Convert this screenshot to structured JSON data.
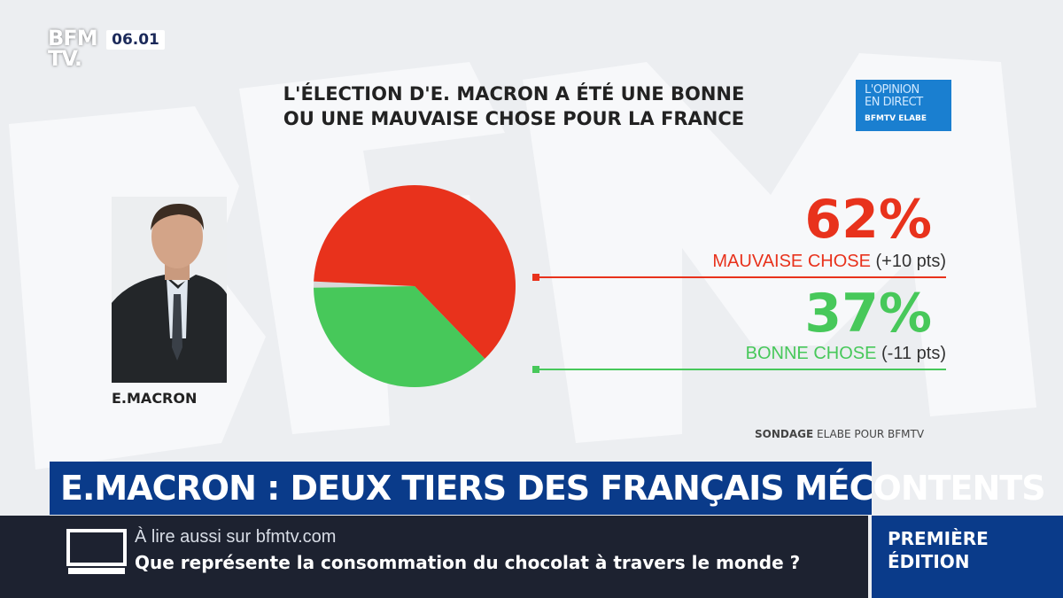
{
  "channel": {
    "logo_line1": "BFM",
    "logo_line2": "TV.",
    "clock": "06.01"
  },
  "badge": {
    "line1": "L'OPINION",
    "line2": "EN DIRECT",
    "line3": "BFMTV ELABE"
  },
  "chart_data": {
    "type": "pie",
    "title": "L'ÉLECTION D'E. MACRON A ÉTÉ UNE BONNE OU UNE MAUVAISE CHOSE POUR LA FRANCE",
    "title_lines": [
      "L'ÉLECTION D'E. MACRON A ÉTÉ UNE BONNE",
      "OU UNE MAUVAISE CHOSE POUR LA FRANCE"
    ],
    "slices": [
      {
        "label": "MAUVAISE CHOSE",
        "value": 62,
        "value_label": "62%",
        "change": "(+10 pts)",
        "color": "#e8321c"
      },
      {
        "label": "BONNE CHOSE",
        "value": 37,
        "value_label": "37%",
        "change": "(-11 pts)",
        "color": "#47c85a"
      }
    ],
    "remainder_color": "#d8d8d8"
  },
  "portrait": {
    "caption": "E.MACRON"
  },
  "source": {
    "bold": "SONDAGE",
    "rest": "ELABE POUR BFMTV"
  },
  "headline": "E.MACRON : DEUX TIERS DES FRANÇAIS MÉCONTENTS",
  "ticker": {
    "line1": "À lire aussi sur bfmtv.com",
    "line2": "Que représente la consommation du chocolat à travers le monde ?"
  },
  "edition": {
    "line1": "PREMIÈRE",
    "line2": "ÉDITION"
  }
}
